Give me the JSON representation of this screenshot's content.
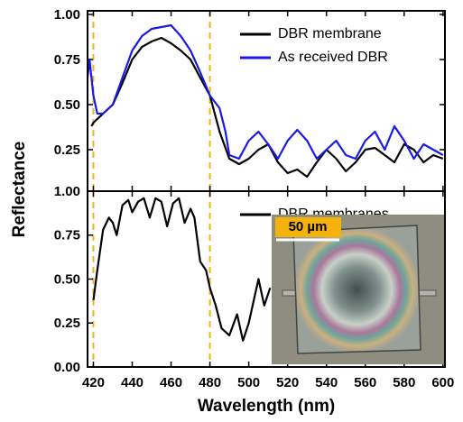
{
  "chart_data": [
    {
      "type": "line",
      "y_label": "Reflectance",
      "xlim": [
        417,
        601
      ],
      "ylim": [
        0.02,
        1.02
      ],
      "yticks": [
        {
          "value": 1.0,
          "label": "1.00"
        },
        {
          "value": 0.75,
          "label": "0.75"
        },
        {
          "value": 0.5,
          "label": "0.50"
        },
        {
          "value": 0.25,
          "label": "0.25"
        }
      ],
      "vlines": [
        420,
        480
      ],
      "vline_color": "#f0b323",
      "legend": "upper right",
      "series": [
        {
          "name": "DBR membrane",
          "color": "#000000",
          "x": [
            419,
            420,
            425,
            430,
            435,
            440,
            445,
            450,
            455,
            460,
            465,
            470,
            475,
            480,
            485,
            490,
            495,
            500,
            505,
            510,
            515,
            520,
            525,
            530,
            535,
            540,
            545,
            550,
            555,
            560,
            565,
            570,
            575,
            580,
            585,
            590,
            595,
            600
          ],
          "values": [
            0.38,
            0.4,
            0.45,
            0.5,
            0.62,
            0.75,
            0.82,
            0.85,
            0.87,
            0.84,
            0.8,
            0.75,
            0.65,
            0.55,
            0.35,
            0.2,
            0.17,
            0.2,
            0.25,
            0.28,
            0.18,
            0.12,
            0.14,
            0.1,
            0.18,
            0.25,
            0.2,
            0.13,
            0.18,
            0.25,
            0.26,
            0.22,
            0.18,
            0.28,
            0.25,
            0.18,
            0.22,
            0.2
          ]
        },
        {
          "name": "As received DBR",
          "color": "#1a1ae6",
          "x": [
            417,
            418,
            420,
            422,
            425,
            430,
            435,
            440,
            445,
            450,
            455,
            460,
            465,
            470,
            475,
            480,
            485,
            488,
            490,
            495,
            500,
            505,
            510,
            515,
            520,
            525,
            530,
            535,
            540,
            545,
            550,
            555,
            560,
            565,
            570,
            575,
            580,
            585,
            590,
            595,
            600
          ],
          "values": [
            0.65,
            0.75,
            0.55,
            0.45,
            0.45,
            0.5,
            0.65,
            0.8,
            0.88,
            0.92,
            0.93,
            0.94,
            0.88,
            0.8,
            0.68,
            0.55,
            0.48,
            0.35,
            0.22,
            0.2,
            0.3,
            0.35,
            0.28,
            0.2,
            0.3,
            0.36,
            0.3,
            0.2,
            0.25,
            0.3,
            0.22,
            0.2,
            0.3,
            0.35,
            0.25,
            0.38,
            0.3,
            0.2,
            0.28,
            0.25,
            0.22
          ]
        }
      ]
    },
    {
      "type": "line",
      "x_label": "Wavelength (nm)",
      "inset_label": "50 µm",
      "xlim": [
        417,
        601
      ],
      "ylim": [
        0,
        1.0
      ],
      "xticks": [
        420,
        440,
        460,
        480,
        500,
        520,
        540,
        560,
        580,
        600
      ],
      "yticks": [
        {
          "value": 1.0,
          "label": "1.00"
        },
        {
          "value": 0.75,
          "label": "0.75"
        },
        {
          "value": 0.5,
          "label": "0.50"
        },
        {
          "value": 0.25,
          "label": "0.25"
        },
        {
          "value": 0,
          "label": "0.00"
        }
      ],
      "vlines": [
        420,
        480
      ],
      "vline_color": "#f0b323",
      "legend": "upper right",
      "series": [
        {
          "name": "DBR membranes",
          "color": "#000000",
          "x": [
            420,
            422,
            425,
            428,
            430,
            432,
            435,
            438,
            440,
            443,
            446,
            449,
            452,
            455,
            458,
            461,
            464,
            467,
            470,
            472,
            475,
            478,
            480,
            483,
            486,
            490,
            494,
            497,
            500,
            505,
            508,
            511
          ],
          "values": [
            0.38,
            0.55,
            0.78,
            0.85,
            0.82,
            0.75,
            0.92,
            0.95,
            0.88,
            0.94,
            0.96,
            0.85,
            0.96,
            0.94,
            0.8,
            0.93,
            0.96,
            0.82,
            0.9,
            0.85,
            0.6,
            0.55,
            0.45,
            0.35,
            0.22,
            0.18,
            0.3,
            0.15,
            0.25,
            0.5,
            0.35,
            0.45
          ]
        }
      ]
    }
  ]
}
